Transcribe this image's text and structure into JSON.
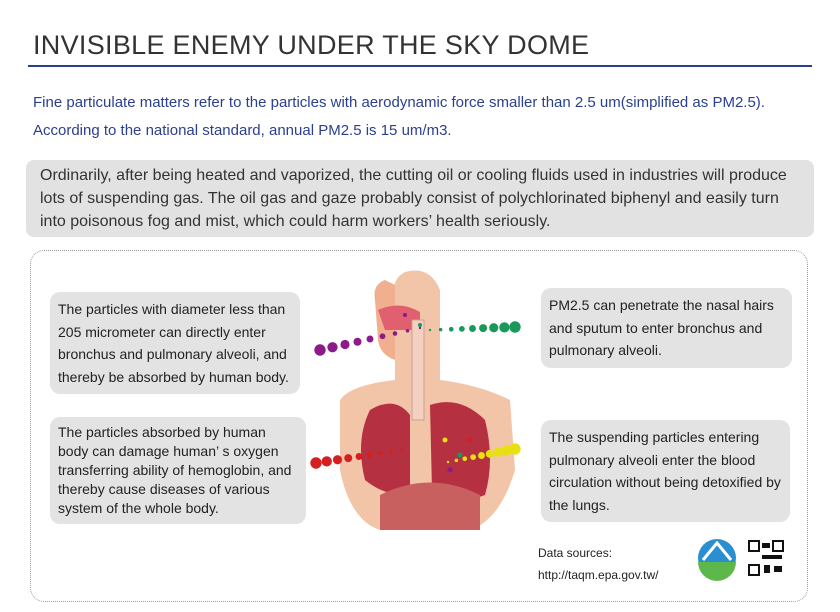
{
  "title": "INVISIBLE ENEMY UNDER THE SKY DOME",
  "intro": "Fine particulate matters refer to the particles with aerodynamic force smaller than 2.5 um(simplified as PM2.5). According to the national standard, annual PM2.5 is 15 um/m3.",
  "highlight": "Ordinarily, after being heated and vaporized, the cutting oil or cooling fluids used in industries will produce lots of suspending gas. The oil gas and gaze probably consist of polychlorinated biphenyl and easily turn into poisonous fog and mist, which could harm workers’  health seriously.",
  "callouts": {
    "top_left": "The particles with diameter less than 205 micrometer can directly enter bronchus and pulmonary alveoli, and thereby be absorbed by human body.",
    "top_right": "PM2.5 can penetrate the nasal hairs and sputum to enter bronchus and pulmonary alveoli.",
    "bottom_left": "The particles absorbed by human body can damage human’ s oxygen transferring ability of hemoglobin, and thereby cause diseases of various system of the whole body.",
    "bottom_right": "The suspending particles entering pulmonary alveoli enter the blood circulation without being detoxified by the lungs."
  },
  "colors": {
    "purple": "#8b1a8b",
    "green": "#1a9a5a",
    "red": "#d42020",
    "yellow": "#e8e010",
    "title_rule": "#2b3f8f"
  },
  "sources": {
    "label": "Data sources:",
    "url": "http://taqm.epa.gov.tw/"
  },
  "icons": [
    "epa-logo",
    "qr-code"
  ]
}
